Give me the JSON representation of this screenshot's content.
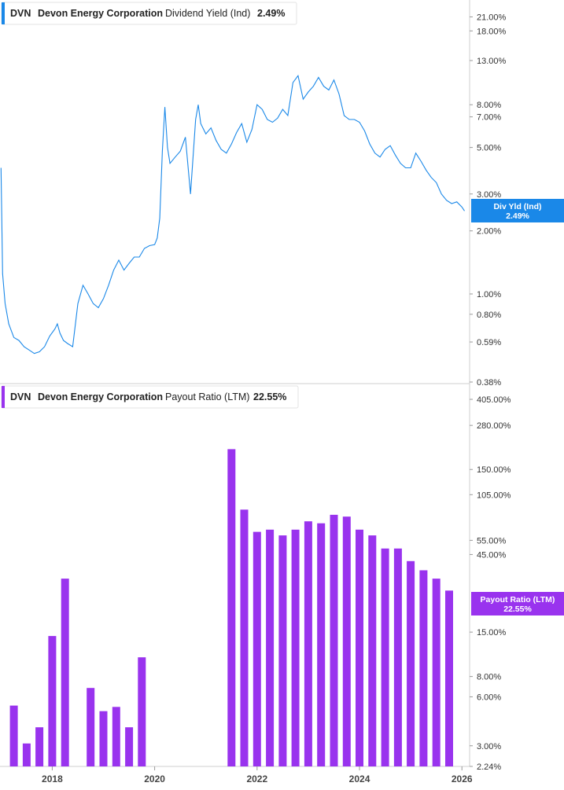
{
  "chart_data": [
    {
      "type": "line",
      "legend": {
        "ticker": "DVN",
        "company": "Devon Energy Corporation",
        "metric": "Dividend Yield (Ind)",
        "value": "2.49%"
      },
      "current_tag": {
        "label": "Div Yld (Ind)",
        "value": "2.49%"
      },
      "color": "#1a88e8",
      "y_scale": "log",
      "ylim": [
        0.38,
        24.0
      ],
      "y_ticks": [
        {
          "value": 21.0,
          "label": "21.00%"
        },
        {
          "value": 18.0,
          "label": "18.00%"
        },
        {
          "value": 13.0,
          "label": "13.00%"
        },
        {
          "value": 8.0,
          "label": "8.00%"
        },
        {
          "value": 7.0,
          "label": "7.00%"
        },
        {
          "value": 5.0,
          "label": "5.00%"
        },
        {
          "value": 3.0,
          "label": "3.00%"
        },
        {
          "value": 2.0,
          "label": "2.00%"
        },
        {
          "value": 1.0,
          "label": "1.00%"
        },
        {
          "value": 0.8,
          "label": "0.80%"
        },
        {
          "value": 0.59,
          "label": "0.59%"
        },
        {
          "value": 0.38,
          "label": "0.38%"
        }
      ],
      "x": [
        2017.0,
        2017.03,
        2017.08,
        2017.15,
        2017.25,
        2017.35,
        2017.45,
        2017.55,
        2017.65,
        2017.75,
        2017.85,
        2017.95,
        2018.05,
        2018.1,
        2018.15,
        2018.22,
        2018.3,
        2018.4,
        2018.5,
        2018.6,
        2018.7,
        2018.8,
        2018.9,
        2019.0,
        2019.1,
        2019.2,
        2019.3,
        2019.4,
        2019.5,
        2019.6,
        2019.7,
        2019.8,
        2019.9,
        2020.0,
        2020.05,
        2020.1,
        2020.15,
        2020.2,
        2020.25,
        2020.3,
        2020.4,
        2020.5,
        2020.6,
        2020.7,
        2020.8,
        2020.85,
        2020.9,
        2021.0,
        2021.1,
        2021.2,
        2021.3,
        2021.4,
        2021.5,
        2021.6,
        2021.7,
        2021.8,
        2021.9,
        2022.0,
        2022.1,
        2022.2,
        2022.3,
        2022.4,
        2022.5,
        2022.6,
        2022.7,
        2022.8,
        2022.9,
        2023.0,
        2023.1,
        2023.2,
        2023.3,
        2023.4,
        2023.5,
        2023.6,
        2023.7,
        2023.8,
        2023.9,
        2024.0,
        2024.1,
        2024.2,
        2024.3,
        2024.4,
        2024.5,
        2024.6,
        2024.7,
        2024.8,
        2024.9,
        2025.0,
        2025.1,
        2025.2,
        2025.3,
        2025.4,
        2025.5,
        2025.6,
        2025.7,
        2025.8,
        2025.9,
        2026.0,
        2026.05
      ],
      "y": [
        4.0,
        1.25,
        0.9,
        0.72,
        0.62,
        0.6,
        0.56,
        0.54,
        0.52,
        0.53,
        0.56,
        0.63,
        0.68,
        0.72,
        0.65,
        0.6,
        0.58,
        0.56,
        0.9,
        1.1,
        1.0,
        0.9,
        0.86,
        0.95,
        1.1,
        1.3,
        1.45,
        1.3,
        1.4,
        1.5,
        1.5,
        1.65,
        1.7,
        1.72,
        1.85,
        2.3,
        4.8,
        7.8,
        5.0,
        4.2,
        4.5,
        4.8,
        5.6,
        3.0,
        6.8,
        8.0,
        6.5,
        5.8,
        6.2,
        5.4,
        4.9,
        4.7,
        5.2,
        5.9,
        6.5,
        5.3,
        6.1,
        8.0,
        7.6,
        6.8,
        6.6,
        6.9,
        7.6,
        7.1,
        10.2,
        11.0,
        8.5,
        9.2,
        9.8,
        10.8,
        9.8,
        9.4,
        10.5,
        9.0,
        7.1,
        6.8,
        6.8,
        6.6,
        6.0,
        5.2,
        4.7,
        4.5,
        4.9,
        5.1,
        4.6,
        4.2,
        4.0,
        4.0,
        4.7,
        4.3,
        3.9,
        3.6,
        3.4,
        3.0,
        2.8,
        2.7,
        2.75,
        2.6,
        2.49
      ]
    },
    {
      "type": "bar",
      "legend": {
        "ticker": "DVN",
        "company": "Devon Energy Corporation",
        "metric": "Payout Ratio (LTM)",
        "value": "22.55%"
      },
      "current_tag": {
        "label": "Payout Ratio (LTM)",
        "value": "22.55%"
      },
      "color": "#9933ee",
      "y_scale": "log",
      "ylim": [
        2.24,
        405.0
      ],
      "y_ticks": [
        {
          "value": 405.0,
          "label": "405.00%"
        },
        {
          "value": 280.0,
          "label": "280.00%"
        },
        {
          "value": 150.0,
          "label": "150.00%"
        },
        {
          "value": 105.0,
          "label": "105.00%"
        },
        {
          "value": 55.0,
          "label": "55.00%"
        },
        {
          "value": 45.0,
          "label": "45.00%"
        },
        {
          "value": 15.0,
          "label": "15.00%"
        },
        {
          "value": 8.0,
          "label": "8.00%"
        },
        {
          "value": 6.0,
          "label": "6.00%"
        },
        {
          "value": 3.0,
          "label": "3.00%"
        },
        {
          "value": 2.24,
          "label": "2.24%"
        }
      ],
      "x": [
        2017.25,
        2017.5,
        2017.75,
        2018.0,
        2018.25,
        2018.75,
        2019.0,
        2019.25,
        2019.5,
        2019.75,
        2021.5,
        2021.75,
        2022.0,
        2022.25,
        2022.5,
        2022.75,
        2023.0,
        2023.25,
        2023.5,
        2023.75,
        2024.0,
        2024.25,
        2024.5,
        2024.75,
        2025.0,
        2025.25,
        2025.5,
        2025.75
      ],
      "values": [
        5.3,
        3.1,
        3.9,
        14.2,
        32.0,
        6.8,
        4.9,
        5.2,
        3.9,
        10.5,
        200.0,
        85.0,
        62.0,
        64.0,
        59.0,
        64.0,
        72.0,
        70.0,
        79.0,
        77.0,
        64.0,
        59.0,
        49.0,
        49.0,
        41.0,
        36.0,
        32.0,
        27.0
      ]
    }
  ],
  "x_axis": {
    "range": [
      2016.98,
      2026.15
    ],
    "ticks": [
      {
        "value": 2018,
        "label": "2018"
      },
      {
        "value": 2020,
        "label": "2020"
      },
      {
        "value": 2022,
        "label": "2022"
      },
      {
        "value": 2024,
        "label": "2024"
      },
      {
        "value": 2026,
        "label": "2026"
      }
    ]
  }
}
